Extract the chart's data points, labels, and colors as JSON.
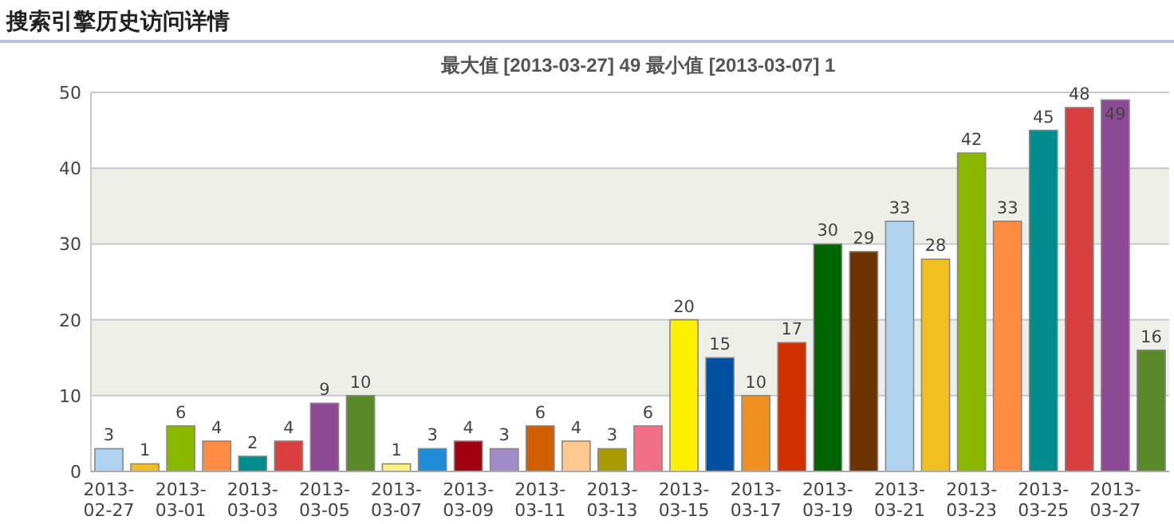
{
  "chart_data": {
    "type": "bar",
    "title": "搜索引擎历史访问详情",
    "subtitle": "最大值 [2013-03-27]  49   最小值 [2013-03-07]  1",
    "categories": [
      "2013-02-27",
      null,
      "2013-03-01",
      null,
      "2013-03-03",
      null,
      "2013-03-05",
      null,
      "2013-03-07",
      null,
      "2013-03-09",
      null,
      "2013-03-11",
      null,
      "2013-03-13",
      null,
      "2013-03-15",
      null,
      "2013-03-17",
      null,
      "2013-03-19",
      null,
      "2013-03-21",
      null,
      "2013-03-23",
      null,
      "2013-03-25",
      null,
      "2013-03-27",
      null
    ],
    "values": [
      3,
      1,
      6,
      4,
      2,
      4,
      9,
      10,
      1,
      3,
      4,
      3,
      6,
      4,
      3,
      6,
      20,
      15,
      10,
      17,
      30,
      29,
      33,
      28,
      42,
      33,
      45,
      48,
      49,
      16
    ],
    "colors": [
      "#b0d4f0",
      "#f0c020",
      "#8ab800",
      "#ff8c40",
      "#008c8c",
      "#d84040",
      "#8c4a94",
      "#5a8a28",
      "#fff080",
      "#1e8cd8",
      "#a00010",
      "#a08cc8",
      "#d06000",
      "#ffc890",
      "#a89c00",
      "#f07088",
      "#fff000",
      "#0050a0",
      "#f09020",
      "#d03000",
      "#006400",
      "#6b3400",
      "#b0d4f0",
      "#f0c020",
      "#8ab800",
      "#ff8c40",
      "#008c8c",
      "#d84040",
      "#8c4a94",
      "#5a8a28"
    ],
    "ylim": [
      0,
      50
    ],
    "yticks": [
      0,
      10,
      20,
      30,
      40,
      50
    ],
    "grid": "y",
    "bands": [
      {
        "axis": "y",
        "from": 10,
        "to": 20,
        "color": "#efefe9"
      },
      {
        "axis": "y",
        "from": 30,
        "to": 40,
        "color": "#efefe9"
      }
    ],
    "data_labels": true
  }
}
